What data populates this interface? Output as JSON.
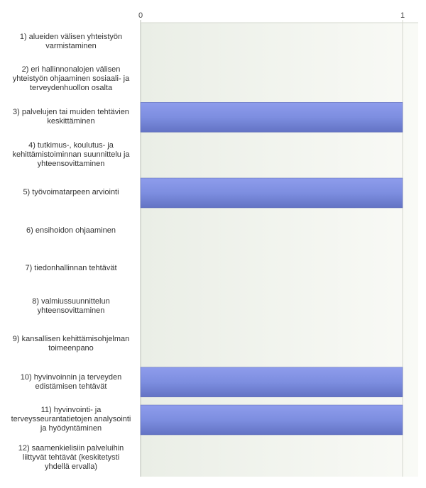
{
  "chart_data": {
    "type": "bar",
    "orientation": "horizontal",
    "categories": [
      "1) alueiden välisen yhteistyön varmistaminen",
      "2) eri hallinnonalojen välisen yhteistyön ohjaaminen sosiaali- ja terveydenhuollon osalta",
      "3) palvelujen tai muiden tehtävien keskittäminen",
      "4) tutkimus-, koulutus- ja kehittämistoiminnan suunnittelu ja yhteensovittaminen",
      "5) työvoimatarpeen arviointi",
      "6) ensihoidon ohjaaminen",
      "7) tiedonhallinnan tehtävät",
      "8) valmiussuunnittelun yhteensovittaminen",
      "9) kansallisen kehittämisohjelman toimeenpano",
      "10) hyvinvoinnin ja terveyden edistämisen tehtävät",
      "11) hyvinvointi- ja terveysseurantatietojen analysointi ja hyödyntäminen",
      "12) saamenkielisiin palveluihin liittyvät tehtävät (keskitetysti yhdellä ervalla)"
    ],
    "label_lines": [
      [
        "1) alueiden välisen yhteistyön",
        "varmistaminen"
      ],
      [
        "2) eri hallinnonalojen välisen",
        "yhteistyön ohjaaminen sosiaali- ja",
        "terveydenhuollon osalta"
      ],
      [
        "3) palvelujen tai muiden tehtävien",
        "keskittäminen"
      ],
      [
        "4) tutkimus-, koulutus- ja",
        "kehittämistoiminnan suunnittelu ja",
        "yhteensovittaminen"
      ],
      [
        "5) työvoimatarpeen arviointi"
      ],
      [
        "6) ensihoidon ohjaaminen"
      ],
      [
        "7) tiedonhallinnan tehtävät"
      ],
      [
        "8) valmiussuunnittelun",
        "yhteensovittaminen"
      ],
      [
        "9) kansallisen kehittämisohjelman",
        "toimeenpano"
      ],
      [
        "10) hyvinvoinnin ja terveyden",
        "edistämisen tehtävät"
      ],
      [
        "11) hyvinvointi- ja",
        "terveysseurantatietojen analysointi",
        "ja hyödyntäminen"
      ],
      [
        "12) saamenkielisiin palveluihin",
        "liittyvät tehtävät (keskitetysti",
        "yhdellä ervalla)"
      ]
    ],
    "values": [
      0,
      0,
      1,
      0,
      1,
      0,
      0,
      0,
      0,
      1,
      1,
      0
    ],
    "xlim": [
      0,
      1
    ],
    "x_ticks": [
      "0",
      "1"
    ],
    "x_axis_position": "top",
    "grid": true,
    "title": "",
    "xlabel": "",
    "ylabel": "",
    "colors": {
      "bar_fill_top": "#8e9cec",
      "bar_fill_mid": "#7d8ee0",
      "bar_fill_bottom": "#6373c4",
      "bar_edge": "#5a68b0",
      "plot_bg_left": "#eaeee6",
      "plot_bg_right": "#f9faf6",
      "gridline": "#d5d8cf",
      "axis": "#b9bcb4",
      "tick_text": "#444444"
    }
  }
}
